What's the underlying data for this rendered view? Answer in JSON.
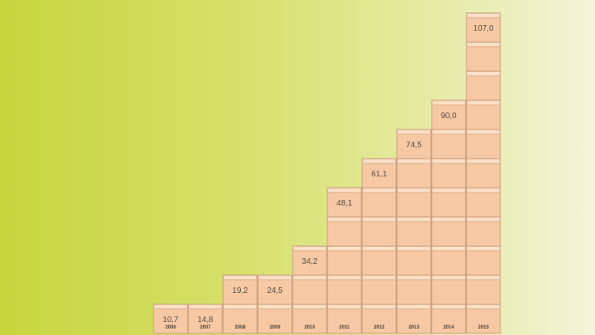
{
  "chart_data": {
    "type": "bar",
    "categories": [
      "2006",
      "2007",
      "2008",
      "2009",
      "2010",
      "2011",
      "2012",
      "2013",
      "2014",
      "2015"
    ],
    "values": [
      10.7,
      14.8,
      19.2,
      24.5,
      34.2,
      48.1,
      61.1,
      74.5,
      90.0,
      107.0
    ],
    "value_labels": [
      "10,7",
      "14,8",
      "19,2",
      "24,5",
      "34,2",
      "48,1",
      "61,1",
      "74,5",
      "90,0",
      "107,0"
    ],
    "stacked_box_counts": [
      1,
      1,
      2,
      2,
      3,
      5,
      6,
      7,
      8,
      11
    ],
    "title": "",
    "xlabel": "",
    "ylabel": "",
    "grid": false,
    "colors": {
      "box_face": "#f6c9a4",
      "box_edge": "#caa07f",
      "background_left": "#c6d63e",
      "background_right": "#f2f4d8"
    }
  }
}
